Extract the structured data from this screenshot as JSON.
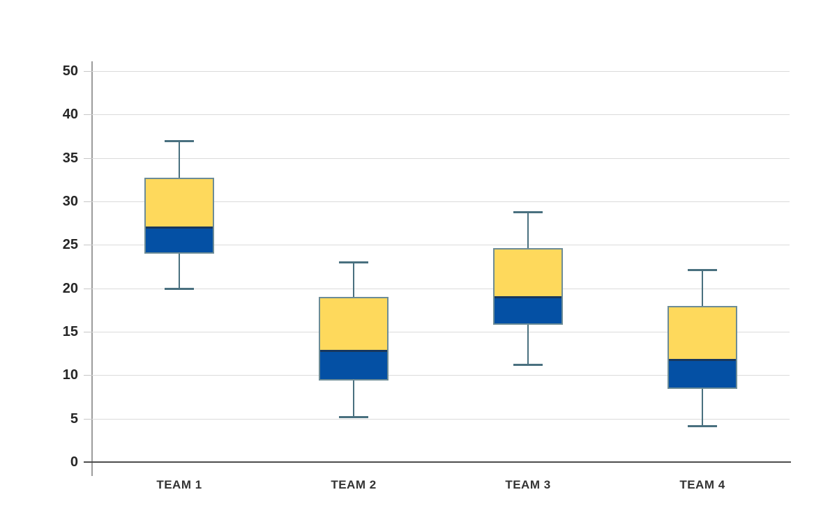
{
  "chart_data": {
    "type": "boxplot",
    "title": "",
    "xlabel": "",
    "ylabel": "",
    "legend": "none",
    "grid": "horizontal",
    "categories": [
      "TEAM 1",
      "TEAM 2",
      "TEAM 3",
      "TEAM 4"
    ],
    "y_ticks_top_to_bottom": [
      50,
      40,
      35,
      30,
      25,
      20,
      15,
      10,
      5,
      0
    ],
    "y_axis_note": "tick labels evenly spaced; value 45 is skipped between 40 and 50",
    "series": [
      {
        "name": "TEAM 1",
        "min": 20,
        "q1": 24,
        "median": 27,
        "q3": 32.7,
        "max": 37
      },
      {
        "name": "TEAM 2",
        "min": 5.2,
        "q1": 9.4,
        "median": 12.8,
        "q3": 19,
        "max": 23
      },
      {
        "name": "TEAM 3",
        "min": 11.2,
        "q1": 15.8,
        "median": 19,
        "q3": 24.6,
        "max": 28.8
      },
      {
        "name": "TEAM 4",
        "min": 4.2,
        "q1": 8.4,
        "median": 11.8,
        "q3": 18,
        "max": 22.1
      }
    ],
    "colors": {
      "box_upper_fill": "#fed95c",
      "box_lower_fill": "#0450a4",
      "box_border": "#6d8c96",
      "median_line": "#17375e",
      "whisker": "#49707f",
      "gridline": "#dbdbdb",
      "x_axis_line": "#4d4d4d",
      "y_axis_line": "#9c9c9c",
      "tick_label_color": "#262626",
      "category_label_color": "#333333"
    }
  }
}
